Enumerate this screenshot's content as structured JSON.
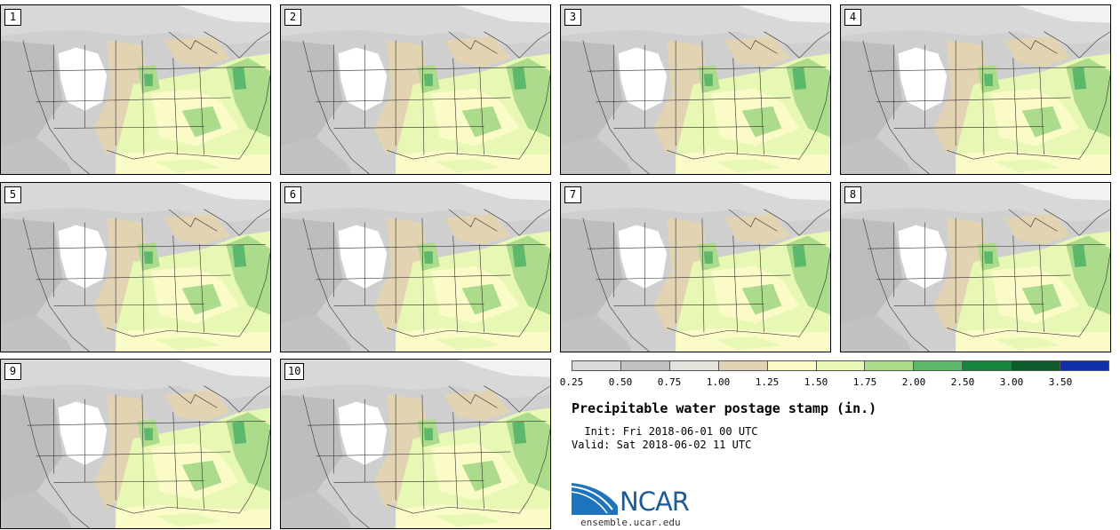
{
  "figure": {
    "title": "Precipitable water postage stamp (in.)",
    "init_label": "  Init: Fri 2018-06-01 00 UTC",
    "valid_label": "Valid: Sat 2018-06-02 11 UTC"
  },
  "panels": [
    {
      "label": "1"
    },
    {
      "label": "2"
    },
    {
      "label": "3"
    },
    {
      "label": "4"
    },
    {
      "label": "5"
    },
    {
      "label": "6"
    },
    {
      "label": "7"
    },
    {
      "label": "8"
    },
    {
      "label": "9"
    },
    {
      "label": "10"
    }
  ],
  "colorbar": {
    "ticks": [
      "0.25",
      "0.50",
      "0.75",
      "1.00",
      "1.25",
      "1.50",
      "1.75",
      "2.00",
      "2.50",
      "3.00",
      "3.50"
    ],
    "colors": [
      "#d9d9d9",
      "#c2c2c2",
      "#e4e4dc",
      "#e2d4b2",
      "#fbfbc8",
      "#e7f7b4",
      "#abdb8b",
      "#5cb86a",
      "#17843d",
      "#0d5a2d",
      "#0f2fa8"
    ]
  },
  "logo": {
    "name": "NCAR",
    "url": "ensemble.ucar.edu"
  }
}
